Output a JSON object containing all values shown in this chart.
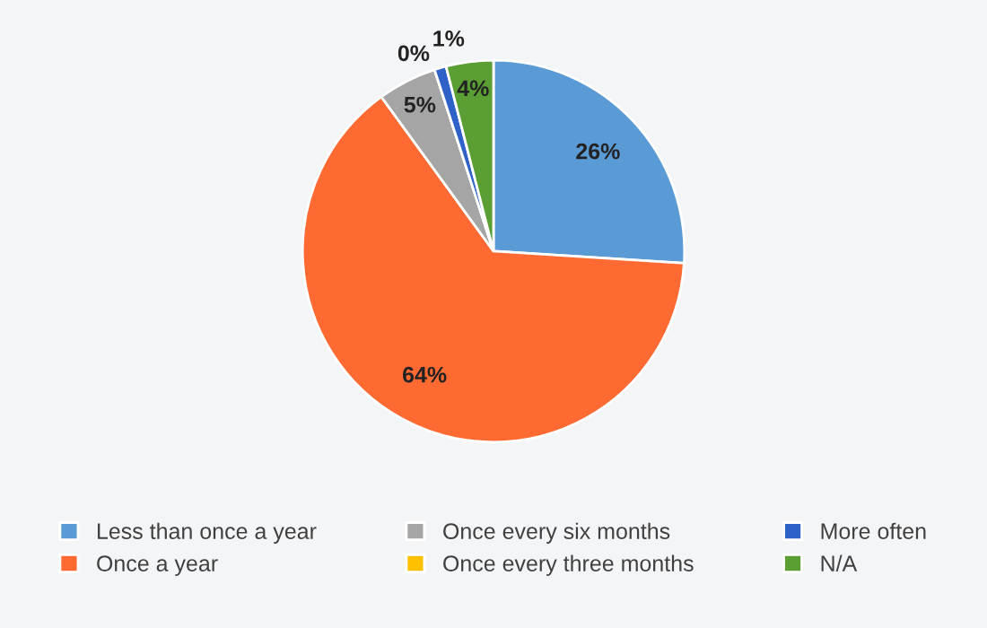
{
  "chart_data": {
    "type": "pie",
    "categories": [
      "Less than once a year",
      "Once a year",
      "Once every six months",
      "Once every three months",
      "More often",
      "N/A"
    ],
    "values": [
      26,
      64,
      5,
      0,
      1,
      4
    ],
    "colors": [
      "#5b9bd5",
      "#ff6a33",
      "#a5a5a5",
      "#ffc000",
      "#2e62c9",
      "#5a9e34"
    ],
    "value_labels": [
      "26%",
      "64%",
      "5%",
      "0%",
      "1%",
      "4%"
    ],
    "legend": "bottom"
  }
}
